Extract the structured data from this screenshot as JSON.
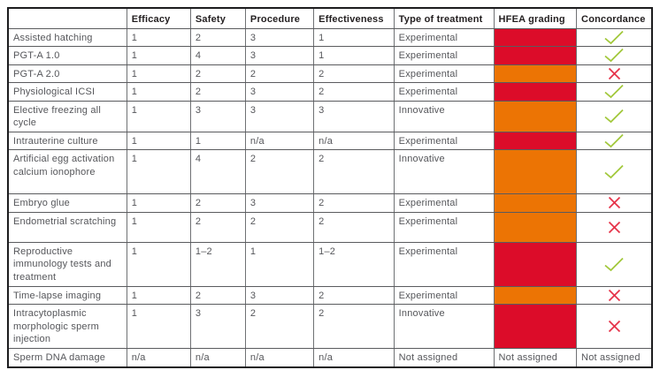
{
  "colors": {
    "hfea": {
      "red": "#dc0c29",
      "orange": "#ec7404"
    },
    "check": "#a2c83c",
    "cross": "#e6344a"
  },
  "table": {
    "columns": [
      "",
      "Efficacy",
      "Safety",
      "Procedure",
      "Effectiveness",
      "Type of treatment",
      "HFEA grading",
      "Concordance"
    ],
    "rows": [
      {
        "treatment": "Assisted hatching",
        "efficacy": "1",
        "safety": "2",
        "procedure": "3",
        "effectiveness": "1",
        "type_of_treatment": "Experimental",
        "hfea_grading": "red",
        "concordance": "check",
        "lines": 1
      },
      {
        "treatment": "PGT-A 1.0",
        "efficacy": "1",
        "safety": "4",
        "procedure": "3",
        "effectiveness": "1",
        "type_of_treatment": "Experimental",
        "hfea_grading": "red",
        "concordance": "check",
        "lines": 1
      },
      {
        "treatment": "PGT-A 2.0",
        "efficacy": "1",
        "safety": "2",
        "procedure": "2",
        "effectiveness": "2",
        "type_of_treatment": "Experimental",
        "hfea_grading": "orange",
        "concordance": "cross",
        "lines": 1
      },
      {
        "treatment": "Physiological ICSI",
        "efficacy": "1",
        "safety": "2",
        "procedure": "3",
        "effectiveness": "2",
        "type_of_treatment": "Experimental",
        "hfea_grading": "red",
        "concordance": "check",
        "lines": 1
      },
      {
        "treatment": "Elective freezing all cycle",
        "efficacy": "1",
        "safety": "3",
        "procedure": "3",
        "effectiveness": "3",
        "type_of_treatment": "Innovative",
        "hfea_grading": "orange",
        "concordance": "check",
        "lines": 2
      },
      {
        "treatment": "Intrauterine culture",
        "efficacy": "1",
        "safety": "1",
        "procedure": "n/a",
        "effectiveness": "n/a",
        "type_of_treatment": "Experimental",
        "hfea_grading": "red",
        "concordance": "check",
        "lines": 1
      },
      {
        "treatment": "Artificial egg activation calcium ionophore",
        "efficacy": "1",
        "safety": "4",
        "procedure": "2",
        "effectiveness": "2",
        "type_of_treatment": "Innovative",
        "hfea_grading": "orange",
        "concordance": "check",
        "lines": 3
      },
      {
        "treatment": "Embryo glue",
        "efficacy": "1",
        "safety": "2",
        "procedure": "3",
        "effectiveness": "2",
        "type_of_treatment": "Experimental",
        "hfea_grading": "orange",
        "concordance": "cross",
        "lines": 1
      },
      {
        "treatment": "Endometrial scratching",
        "efficacy": "1",
        "safety": "2",
        "procedure": "2",
        "effectiveness": "2",
        "type_of_treatment": "Experimental",
        "hfea_grading": "orange",
        "concordance": "cross",
        "lines": 2
      },
      {
        "treatment": "Reproductive immunology tests and treatment",
        "efficacy": "1",
        "safety": "1–2",
        "procedure": "1",
        "effectiveness": "1–2",
        "type_of_treatment": "Experimental",
        "hfea_grading": "red",
        "concordance": "check",
        "lines": 3
      },
      {
        "treatment": "Time-lapse imaging",
        "efficacy": "1",
        "safety": "2",
        "procedure": "3",
        "effectiveness": "2",
        "type_of_treatment": "Experimental",
        "hfea_grading": "orange",
        "concordance": "cross",
        "lines": 1
      },
      {
        "treatment": "Intracytoplasmic morphologic sperm injection",
        "efficacy": "1",
        "safety": "3",
        "procedure": "2",
        "effectiveness": "2",
        "type_of_treatment": "Innovative",
        "hfea_grading": "red",
        "concordance": "cross",
        "lines": 3
      },
      {
        "treatment": "Sperm DNA damage",
        "efficacy": "n/a",
        "safety": "n/a",
        "procedure": "n/a",
        "effectiveness": "n/a",
        "type_of_treatment": "Not assigned",
        "hfea_grading": "Not assigned",
        "concordance": "Not assigned",
        "lines": 1
      }
    ]
  }
}
